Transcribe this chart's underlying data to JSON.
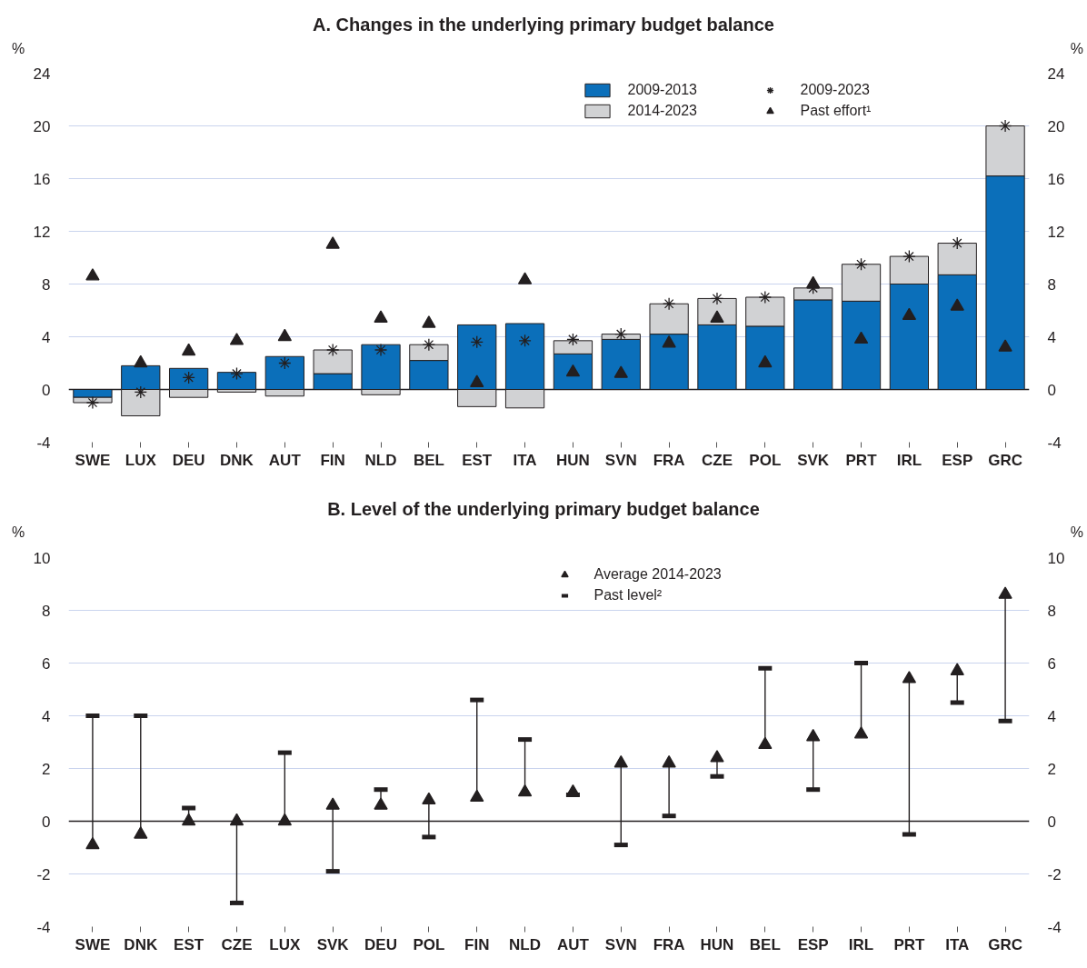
{
  "chart_data": [
    {
      "type": "bar",
      "title": "A. Changes in the underlying primary budget balance",
      "ylabel": "%",
      "y2label": "%",
      "categories": [
        "SWE",
        "LUX",
        "DEU",
        "DNK",
        "AUT",
        "FIN",
        "NLD",
        "BEL",
        "EST",
        "ITA",
        "HUN",
        "SVN",
        "FRA",
        "CZE",
        "POL",
        "SVK",
        "PRT",
        "IRL",
        "ESP",
        "GRC"
      ],
      "stacked": true,
      "series": [
        {
          "name": "2009-2013",
          "color": "#0b6fba",
          "values": [
            -0.6,
            1.8,
            1.6,
            1.3,
            2.5,
            1.2,
            3.4,
            2.2,
            4.9,
            5.0,
            2.7,
            3.8,
            4.2,
            4.9,
            4.8,
            6.8,
            6.7,
            8.0,
            8.7,
            16.2
          ]
        },
        {
          "name": "2014-2023",
          "color": "#d1d2d4",
          "values": [
            -0.4,
            -2.0,
            -0.6,
            -0.2,
            -0.5,
            1.8,
            -0.4,
            1.2,
            -1.3,
            -1.4,
            1.0,
            0.4,
            2.3,
            2.0,
            2.2,
            0.9,
            2.8,
            2.1,
            2.4,
            3.8
          ]
        },
        {
          "name": "2009-2023",
          "type": "scatter",
          "marker": "cross",
          "color": "#231f20",
          "values": [
            -1.0,
            -0.2,
            0.9,
            1.2,
            2.0,
            3.0,
            3.0,
            3.4,
            3.6,
            3.7,
            3.8,
            4.2,
            6.5,
            6.9,
            7.0,
            7.7,
            9.5,
            10.1,
            11.1,
            20.0
          ]
        },
        {
          "name": "Past effort¹",
          "type": "scatter",
          "marker": "triangle",
          "color": "#231f20",
          "values": [
            8.6,
            2.0,
            2.9,
            3.7,
            4.0,
            11.0,
            5.4,
            5.0,
            0.5,
            8.3,
            1.3,
            1.2,
            3.5,
            5.4,
            2.0,
            8.0,
            3.8,
            5.6,
            6.3,
            3.2
          ]
        }
      ],
      "ylim": [
        -4,
        24
      ],
      "yticks": [
        -4,
        0,
        4,
        8,
        12,
        16,
        20,
        24
      ],
      "y2lim": [
        -4,
        24
      ],
      "y2ticks": [
        -4,
        0,
        4,
        8,
        12,
        16,
        20,
        24
      ],
      "grid": "y",
      "legend": "top right",
      "ref_lines": [
        {
          "axis": "y",
          "value": 0,
          "color": "#231f20"
        }
      ]
    },
    {
      "type": "scatter",
      "title": "B. Level of the underlying primary budget balance",
      "ylabel": "%",
      "y2label": "%",
      "categories": [
        "SWE",
        "DNK",
        "EST",
        "CZE",
        "LUX",
        "SVK",
        "DEU",
        "POL",
        "FIN",
        "NLD",
        "AUT",
        "SVN",
        "FRA",
        "HUN",
        "BEL",
        "ESP",
        "IRL",
        "PRT",
        "ITA",
        "GRC"
      ],
      "series": [
        {
          "name": "Average 2014-2023",
          "marker": "triangle",
          "color": "#231f20",
          "values": [
            -0.9,
            -0.5,
            0.0,
            0.0,
            0.0,
            0.6,
            0.6,
            0.8,
            0.9,
            1.1,
            1.1,
            2.2,
            2.2,
            2.4,
            2.9,
            3.2,
            3.3,
            5.4,
            5.7,
            8.6
          ]
        },
        {
          "name": "Past level²",
          "marker": "square",
          "color": "#231f20",
          "values": [
            4.0,
            4.0,
            0.5,
            -3.1,
            2.6,
            -1.9,
            1.2,
            -0.6,
            4.6,
            3.1,
            1.0,
            -0.9,
            0.2,
            1.7,
            5.8,
            1.2,
            6.0,
            -0.5,
            4.5,
            3.8
          ]
        }
      ],
      "ylim": [
        -4,
        10
      ],
      "yticks": [
        -4,
        -2,
        0,
        2,
        4,
        6,
        8,
        10
      ],
      "y2lim": [
        -4,
        10
      ],
      "y2ticks": [
        -4,
        -2,
        0,
        2,
        4,
        6,
        8,
        10
      ],
      "grid": "y",
      "legend": "top",
      "ref_lines": [
        {
          "axis": "y",
          "value": 0,
          "color": "#231f20"
        }
      ]
    }
  ]
}
